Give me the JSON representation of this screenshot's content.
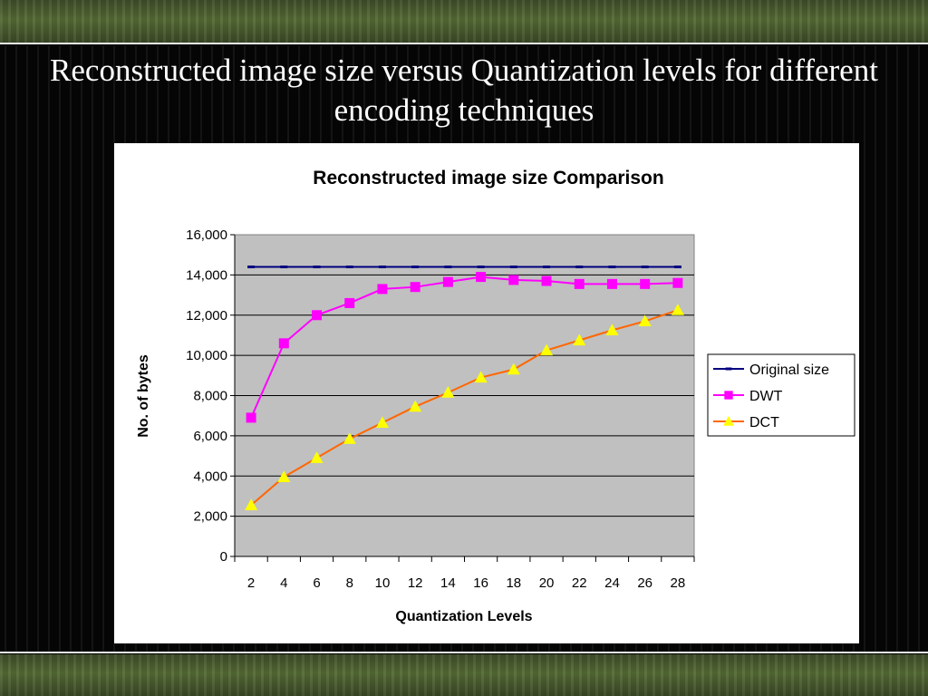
{
  "slide": {
    "title": "Reconstructed image size versus Quantization levels for different encoding techniques"
  },
  "chart_data": {
    "type": "line",
    "title": "Reconstructed image size Comparison",
    "xlabel": "Quantization Levels",
    "ylabel": "No. of bytes",
    "categories": [
      2,
      4,
      6,
      8,
      10,
      12,
      14,
      16,
      18,
      20,
      22,
      24,
      26,
      28
    ],
    "ylim": [
      0,
      16000
    ],
    "yticks": [
      0,
      2000,
      4000,
      6000,
      8000,
      10000,
      12000,
      14000,
      16000
    ],
    "ytick_labels": [
      "0",
      "2,000",
      "4,000",
      "6,000",
      "8,000",
      "10,000",
      "12,000",
      "14,000",
      "16,000"
    ],
    "grid": "horizontal",
    "plot_background": "#c0c0c0",
    "legend": "right",
    "series": [
      {
        "name": "Original size",
        "color": "#000080",
        "marker": "dash",
        "values": [
          14400,
          14400,
          14400,
          14400,
          14400,
          14400,
          14400,
          14400,
          14400,
          14400,
          14400,
          14400,
          14400,
          14400
        ]
      },
      {
        "name": "DWT",
        "color": "#ff00ff",
        "marker": "square",
        "values": [
          6900,
          10600,
          12000,
          12600,
          13300,
          13400,
          13650,
          13900,
          13750,
          13700,
          13550,
          13550,
          13550,
          13600
        ]
      },
      {
        "name": "DCT",
        "color": "#ff6600",
        "marker": "triangle",
        "marker_color": "#ffff00",
        "values": [
          2550,
          3950,
          4900,
          5850,
          6650,
          7450,
          8150,
          8900,
          9300,
          10250,
          10750,
          11250,
          11700,
          12250
        ]
      }
    ]
  }
}
